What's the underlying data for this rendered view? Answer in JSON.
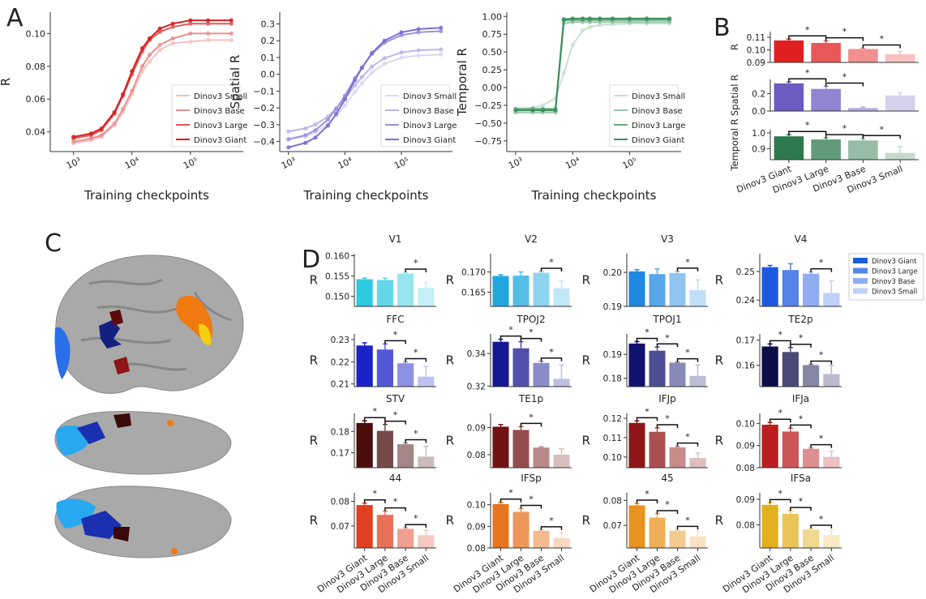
{
  "panel_labels": {
    "a": "A",
    "b": "B",
    "c": "C",
    "d": "D"
  },
  "models": [
    "Dinov3 Giant",
    "Dinov3 Large",
    "Dinov3 Base",
    "Dinov3 Small"
  ],
  "chart_data": [
    {
      "id": "A1",
      "type": "line",
      "xscale": "log",
      "xlabel": "Training checkpoints",
      "ylabel": "R",
      "xlim": [
        400,
        800000
      ],
      "ylim": [
        0.028,
        0.113
      ],
      "yticks": [
        0.04,
        0.06,
        0.08,
        0.1
      ],
      "xticks": [
        1000,
        10000,
        100000
      ],
      "xticklabels": [
        "10³",
        "10⁴",
        "10⁵"
      ],
      "legend": "bottom-right",
      "color": "#d62020",
      "x": [
        1000,
        2000,
        3000,
        5000,
        7000,
        10000,
        15000,
        20000,
        30000,
        50000,
        100000,
        200000,
        500000
      ],
      "series": [
        {
          "name": "Dinov3 Small",
          "values": [
            0.033,
            0.035,
            0.037,
            0.044,
            0.052,
            0.063,
            0.077,
            0.083,
            0.09,
            0.094,
            0.095,
            0.096,
            0.096
          ]
        },
        {
          "name": "Dinov3 Base",
          "values": [
            0.034,
            0.036,
            0.038,
            0.045,
            0.054,
            0.065,
            0.08,
            0.087,
            0.093,
            0.097,
            0.1,
            0.1,
            0.1
          ]
        },
        {
          "name": "Dinov3 Large",
          "values": [
            0.036,
            0.038,
            0.041,
            0.051,
            0.062,
            0.075,
            0.089,
            0.096,
            0.101,
            0.104,
            0.106,
            0.106,
            0.106
          ]
        },
        {
          "name": "Dinov3 Giant",
          "values": [
            0.037,
            0.039,
            0.042,
            0.052,
            0.063,
            0.077,
            0.091,
            0.097,
            0.103,
            0.106,
            0.108,
            0.108,
            0.108
          ]
        }
      ]
    },
    {
      "id": "A2",
      "type": "line",
      "xscale": "log",
      "xlabel": "Training checkpoints",
      "ylabel": "Spatial R",
      "xlim": [
        700,
        800000
      ],
      "ylim": [
        -0.46,
        0.37
      ],
      "yticks": [
        -0.4,
        -0.3,
        -0.2,
        -0.1,
        0.0,
        0.1,
        0.2,
        0.3
      ],
      "xticks": [
        1000,
        10000,
        100000
      ],
      "xticklabels": [
        "10³",
        "10⁴",
        "10⁵"
      ],
      "legend": "bottom-right",
      "color": "#7b6fd0",
      "x": [
        1000,
        2000,
        3000,
        5000,
        7000,
        10000,
        15000,
        20000,
        30000,
        50000,
        100000,
        200000,
        500000
      ],
      "series": [
        {
          "name": "Dinov3 Small",
          "values": [
            -0.389,
            -0.37,
            -0.347,
            -0.297,
            -0.247,
            -0.185,
            -0.104,
            -0.053,
            0.011,
            0.063,
            0.099,
            0.112,
            0.118
          ]
        },
        {
          "name": "Dinov3 Base",
          "values": [
            -0.34,
            -0.322,
            -0.299,
            -0.251,
            -0.203,
            -0.144,
            -0.066,
            -0.016,
            0.046,
            0.096,
            0.13,
            0.143,
            0.148
          ]
        },
        {
          "name": "Dinov3 Large",
          "values": [
            -0.386,
            -0.362,
            -0.333,
            -0.269,
            -0.206,
            -0.127,
            -0.024,
            0.041,
            0.122,
            0.188,
            0.233,
            0.25,
            0.257
          ]
        },
        {
          "name": "Dinov3 Giant",
          "values": [
            -0.435,
            -0.408,
            -0.376,
            -0.305,
            -0.235,
            -0.149,
            -0.035,
            0.038,
            0.127,
            0.2,
            0.25,
            0.269,
            0.277
          ]
        }
      ]
    },
    {
      "id": "A3",
      "type": "line",
      "xscale": "log",
      "xlabel": "Training checkpoints",
      "ylabel": "Temporal R",
      "xlim": [
        700,
        800000
      ],
      "ylim": [
        -0.9,
        1.06
      ],
      "yticks": [
        -0.75,
        -0.5,
        -0.25,
        0.0,
        0.25,
        0.5,
        0.75,
        1.0
      ],
      "yticklabels": [
        "−0.75",
        "−0.50",
        "−0.25",
        "0.00",
        "0.25",
        "0.50",
        "0.75",
        "1.00"
      ],
      "xticks": [
        1000,
        10000,
        100000
      ],
      "xticklabels": [
        "10³",
        "10⁴",
        "10⁵"
      ],
      "legend": "bottom-right",
      "color": "#3a8f5a",
      "x": [
        1000,
        2000,
        3000,
        5000,
        7000,
        10000,
        15000,
        20000,
        30000,
        50000,
        100000,
        200000,
        500000
      ],
      "series": [
        {
          "name": "Dinov3 Small",
          "values": [
            -0.3,
            -0.28,
            -0.25,
            -0.15,
            0.2,
            0.6,
            0.8,
            0.85,
            0.88,
            0.89,
            0.9,
            0.9,
            0.9
          ]
        },
        {
          "name": "Dinov3 Base",
          "values": [
            -0.35,
            -0.35,
            -0.35,
            -0.35,
            0.9,
            0.92,
            0.92,
            0.92,
            0.92,
            0.92,
            0.92,
            0.92,
            0.92
          ]
        },
        {
          "name": "Dinov3 Large",
          "values": [
            -0.3,
            -0.3,
            -0.3,
            -0.3,
            0.94,
            0.95,
            0.95,
            0.95,
            0.95,
            0.95,
            0.95,
            0.95,
            0.95
          ]
        },
        {
          "name": "Dinov3 Giant",
          "values": [
            -0.32,
            -0.32,
            -0.32,
            -0.32,
            0.96,
            0.97,
            0.97,
            0.97,
            0.97,
            0.97,
            0.97,
            0.97,
            0.97
          ]
        }
      ]
    },
    {
      "id": "B1",
      "type": "bar",
      "ylabel": "R",
      "categories": [
        "Dinov3 Giant",
        "Dinov3 Large",
        "Dinov3 Base",
        "Dinov3 Small"
      ],
      "values": [
        0.1075,
        0.1055,
        0.1007,
        0.0966
      ],
      "errors": [
        0.001,
        0.0015,
        0.0006,
        0.0022
      ],
      "ylim": [
        0.09,
        0.1145
      ],
      "yticks": [
        0.09,
        0.1,
        0.11
      ],
      "yticklabels": [
        "0.09",
        "0.10",
        "0.11"
      ],
      "significance": [
        [
          0,
          1
        ],
        [
          1,
          2
        ],
        [
          2,
          3
        ]
      ],
      "sig_label": "*",
      "color": "#e02020"
    },
    {
      "id": "B2",
      "type": "bar",
      "ylabel": "Spatial R",
      "categories": [
        "Dinov3 Giant",
        "Dinov3 Large",
        "Dinov3 Base",
        "Dinov3 Small"
      ],
      "values": [
        0.315,
        0.252,
        0.035,
        0.178
      ],
      "errors": [
        0.015,
        0.03,
        0.01,
        0.03
      ],
      "ylim": [
        0,
        0.36
      ],
      "yticks": [
        0.0,
        0.2
      ],
      "yticklabels": [
        "0.0",
        "0.2"
      ],
      "significance": [
        [
          0,
          1
        ],
        [
          1,
          2
        ]
      ],
      "sig_label": "*",
      "color": "#6a5cc0"
    },
    {
      "id": "B3",
      "type": "bar",
      "ylabel": "Temporal R",
      "categories": [
        "Dinov3 Giant",
        "Dinov3 Large",
        "Dinov3 Base",
        "Dinov3 Small"
      ],
      "values": [
        0.978,
        0.958,
        0.952,
        0.873
      ],
      "errors": [
        0.01,
        0.01,
        0.01,
        0.04
      ],
      "ylim": [
        0.83,
        1.02
      ],
      "yticks": [
        0.9,
        1.0
      ],
      "yticklabels": [
        "0.9",
        "1.0"
      ],
      "significance": [
        [
          0,
          1
        ],
        [
          1,
          2
        ],
        [
          2,
          3
        ]
      ],
      "sig_label": "*",
      "color": "#2e7a4e",
      "show_xticklabels": true
    },
    {
      "id": "D-V1",
      "type": "bar",
      "title": "V1",
      "ylabel": "R",
      "values": [
        0.1542,
        0.154,
        0.1556,
        0.1521
      ],
      "errors": [
        0.0003,
        0.0005,
        0.0003,
        0.0013
      ],
      "ylim": [
        0.1475,
        0.1605
      ],
      "yticks": [
        0.15,
        0.155,
        0.16
      ],
      "yticklabels": [
        "0.150",
        "0.155",
        "0.160"
      ],
      "significance": [
        [
          2,
          3
        ]
      ],
      "sig_label": "*",
      "color": "#2ecadf"
    },
    {
      "id": "D-V2",
      "type": "bar",
      "title": "V2",
      "ylabel": "R",
      "values": [
        0.169,
        0.1691,
        0.1698,
        0.166
      ],
      "errors": [
        0.0003,
        0.0009,
        0.0003,
        0.0018
      ],
      "ylim": [
        0.1615,
        0.1745
      ],
      "yticks": [
        0.165,
        0.17
      ],
      "yticklabels": [
        "0.165",
        "0.170"
      ],
      "significance": [
        [
          2,
          3
        ]
      ],
      "sig_label": "*",
      "color": "#1ea8de"
    },
    {
      "id": "D-V3",
      "type": "bar",
      "title": "V3",
      "ylabel": "R",
      "values": [
        0.2003,
        0.1995,
        0.1998,
        0.1948
      ],
      "errors": [
        0.0005,
        0.0015,
        0.0005,
        0.003
      ],
      "ylim": [
        0.19,
        0.2055
      ],
      "yticks": [
        0.19,
        0.2
      ],
      "yticklabels": [
        "0.19",
        "0.20"
      ],
      "significance": [
        [
          2,
          3
        ]
      ],
      "sig_label": "*",
      "color": "#1f88e0"
    },
    {
      "id": "D-V4",
      "type": "bar",
      "title": "V4",
      "ylabel": "R",
      "values": [
        0.2515,
        0.2505,
        0.2492,
        0.2425
      ],
      "errors": [
        0.0006,
        0.0022,
        0.0006,
        0.0042
      ],
      "ylim": [
        0.2378,
        0.2562
      ],
      "yticks": [
        0.24,
        0.25
      ],
      "yticklabels": [
        "0.24",
        "0.25"
      ],
      "significance": [
        [
          2,
          3
        ]
      ],
      "sig_label": "*",
      "color": "#1e5ae0"
    },
    {
      "id": "D-FFC",
      "type": "bar",
      "title": "FFC",
      "ylabel": "R",
      "values": [
        0.2273,
        0.2255,
        0.2193,
        0.2133
      ],
      "errors": [
        0.0012,
        0.0025,
        0.0006,
        0.0045
      ],
      "ylim": [
        0.2088,
        0.2325
      ],
      "yticks": [
        0.21,
        0.22,
        0.23
      ],
      "yticklabels": [
        "0.21",
        "0.22",
        "0.23"
      ],
      "significance": [
        [
          1,
          2
        ],
        [
          2,
          3
        ]
      ],
      "sig_label": "*",
      "color": "#1a22c8"
    },
    {
      "id": "D-TPOJ2",
      "type": "bar",
      "title": "TPOJ2",
      "ylabel": "R",
      "values": [
        0.3472,
        0.3432,
        0.3342,
        0.3245
      ],
      "errors": [
        0.0015,
        0.004,
        0.001,
        0.0085
      ],
      "ylim": [
        0.3197,
        0.352
      ],
      "yticks": [
        0.32,
        0.34
      ],
      "yticklabels": [
        "0.32",
        "0.34"
      ],
      "significance": [
        [
          0,
          1
        ],
        [
          1,
          2
        ],
        [
          2,
          3
        ]
      ],
      "sig_label": "*",
      "color": "#151690"
    },
    {
      "id": "D-TPOJ1",
      "type": "bar",
      "title": "TPOJ1",
      "ylabel": "R",
      "values": [
        0.1945,
        0.1915,
        0.1865,
        0.181
      ],
      "errors": [
        0.0008,
        0.0015,
        0.0003,
        0.0045
      ],
      "ylim": [
        0.1765,
        0.1985
      ],
      "yticks": [
        0.18,
        0.19
      ],
      "yticklabels": [
        "0.18",
        "0.19"
      ],
      "significance": [
        [
          0,
          1
        ],
        [
          1,
          2
        ],
        [
          2,
          3
        ]
      ],
      "sig_label": "*",
      "color": "#10126e"
    },
    {
      "id": "D-TE2p",
      "type": "bar",
      "title": "TE2p",
      "ylabel": "R",
      "values": [
        0.1675,
        0.1653,
        0.1601,
        0.1565
      ],
      "errors": [
        0.001,
        0.0018,
        0.0003,
        0.0035
      ],
      "ylim": [
        0.1515,
        0.1725
      ],
      "yticks": [
        0.16,
        0.17
      ],
      "yticklabels": [
        "0.16",
        "0.17"
      ],
      "significance": [
        [
          0,
          1
        ],
        [
          1,
          2
        ],
        [
          2,
          3
        ]
      ],
      "sig_label": "*",
      "color": "#0c0d48"
    },
    {
      "id": "D-STV",
      "type": "bar",
      "title": "STV",
      "ylabel": "R",
      "values": [
        0.184,
        0.1803,
        0.174,
        0.1682
      ],
      "errors": [
        0.001,
        0.003,
        0.0006,
        0.0048
      ],
      "ylim": [
        0.163,
        0.1885
      ],
      "yticks": [
        0.17,
        0.18
      ],
      "yticklabels": [
        "0.17",
        "0.18"
      ],
      "significance": [
        [
          0,
          1
        ],
        [
          1,
          2
        ],
        [
          2,
          3
        ]
      ],
      "sig_label": "*",
      "color": "#4a0c0c"
    },
    {
      "id": "D-TE1p",
      "type": "bar",
      "title": "TE1p",
      "ylabel": "R",
      "values": [
        0.0903,
        0.0891,
        0.0826,
        0.08
      ],
      "errors": [
        0.0008,
        0.0012,
        0.0003,
        0.0022
      ],
      "ylim": [
        0.0752,
        0.0952
      ],
      "yticks": [
        0.08,
        0.09
      ],
      "yticklabels": [
        "0.08",
        "0.09"
      ],
      "significance": [
        [
          1,
          2
        ]
      ],
      "sig_label": "*",
      "color": "#701212"
    },
    {
      "id": "D-IFJp",
      "type": "bar",
      "title": "IFJp",
      "ylabel": "R",
      "values": [
        0.1176,
        0.113,
        0.105,
        0.0995
      ],
      "errors": [
        0.001,
        0.002,
        0.0005,
        0.0025
      ],
      "ylim": [
        0.0945,
        0.1225
      ],
      "yticks": [
        0.1,
        0.11,
        0.12
      ],
      "yticklabels": [
        "0.10",
        "0.11",
        "0.12"
      ],
      "significance": [
        [
          0,
          1
        ],
        [
          1,
          2
        ],
        [
          2,
          3
        ]
      ],
      "sig_label": "*",
      "color": "#8e1616"
    },
    {
      "id": "D-IFJa",
      "type": "bar",
      "title": "IFJa",
      "ylabel": "R",
      "values": [
        0.0994,
        0.0963,
        0.0885,
        0.0849
      ],
      "errors": [
        0.001,
        0.0015,
        0.0004,
        0.0025
      ],
      "ylim": [
        0.08,
        0.1045
      ],
      "yticks": [
        0.08,
        0.09,
        0.1
      ],
      "yticklabels": [
        "0.08",
        "0.09",
        "0.10"
      ],
      "significance": [
        [
          0,
          1
        ],
        [
          1,
          2
        ],
        [
          2,
          3
        ]
      ],
      "sig_label": "*",
      "color": "#bb1e1e"
    },
    {
      "id": "D-44",
      "type": "bar",
      "title": "44",
      "ylabel": "R",
      "values": [
        0.0785,
        0.0745,
        0.0688,
        0.0662
      ],
      "errors": [
        0.0008,
        0.0015,
        0.0004,
        0.002
      ],
      "ylim": [
        0.061,
        0.0835
      ],
      "yticks": [
        0.07,
        0.08
      ],
      "yticklabels": [
        "0.07",
        "0.08"
      ],
      "significance": [
        [
          0,
          1
        ],
        [
          1,
          2
        ],
        [
          2,
          3
        ]
      ],
      "sig_label": "*",
      "color": "#e04020",
      "show_xticklabels": true
    },
    {
      "id": "D-IFSp",
      "type": "bar",
      "title": "IFSp",
      "ylabel": "R",
      "values": [
        0.1003,
        0.0967,
        0.0879,
        0.0846
      ],
      "errors": [
        0.0008,
        0.0015,
        0.0004,
        0.0025
      ],
      "ylim": [
        0.08,
        0.1055
      ],
      "yticks": [
        0.08,
        0.09,
        0.1
      ],
      "yticklabels": [
        "0.08",
        "0.09",
        "0.10"
      ],
      "significance": [
        [
          0,
          1
        ],
        [
          1,
          2
        ],
        [
          2,
          3
        ]
      ],
      "sig_label": "*",
      "color": "#e87420",
      "show_xticklabels": true
    },
    {
      "id": "D-45",
      "type": "bar",
      "title": "45",
      "ylabel": "R",
      "values": [
        0.078,
        0.0731,
        0.0679,
        0.0656
      ],
      "errors": [
        0.0008,
        0.0015,
        0.0004,
        0.002
      ],
      "ylim": [
        0.061,
        0.083
      ],
      "yticks": [
        0.07,
        0.08
      ],
      "yticklabels": [
        "0.07",
        "0.08"
      ],
      "significance": [
        [
          0,
          1
        ],
        [
          1,
          2
        ],
        [
          2,
          3
        ]
      ],
      "sig_label": "*",
      "color": "#e89420",
      "show_xticklabels": true
    },
    {
      "id": "D-IFSa",
      "type": "bar",
      "title": "IFSa",
      "ylabel": "R",
      "values": [
        0.0878,
        0.0843,
        0.0782,
        0.076
      ],
      "errors": [
        0.0008,
        0.0012,
        0.0004,
        0.002
      ],
      "ylim": [
        0.071,
        0.0925
      ],
      "yticks": [
        0.08,
        0.09
      ],
      "yticklabels": [
        "0.08",
        "0.09"
      ],
      "significance": [
        [
          0,
          1
        ],
        [
          1,
          2
        ],
        [
          2,
          3
        ]
      ],
      "sig_label": "*",
      "color": "#e2b020",
      "show_xticklabels": true
    }
  ],
  "d_legend": {
    "entries": [
      "Dinov3 Giant",
      "Dinov3 Large",
      "Dinov3 Base",
      "Dinov3 Small"
    ],
    "color": "#1a5fe0"
  }
}
